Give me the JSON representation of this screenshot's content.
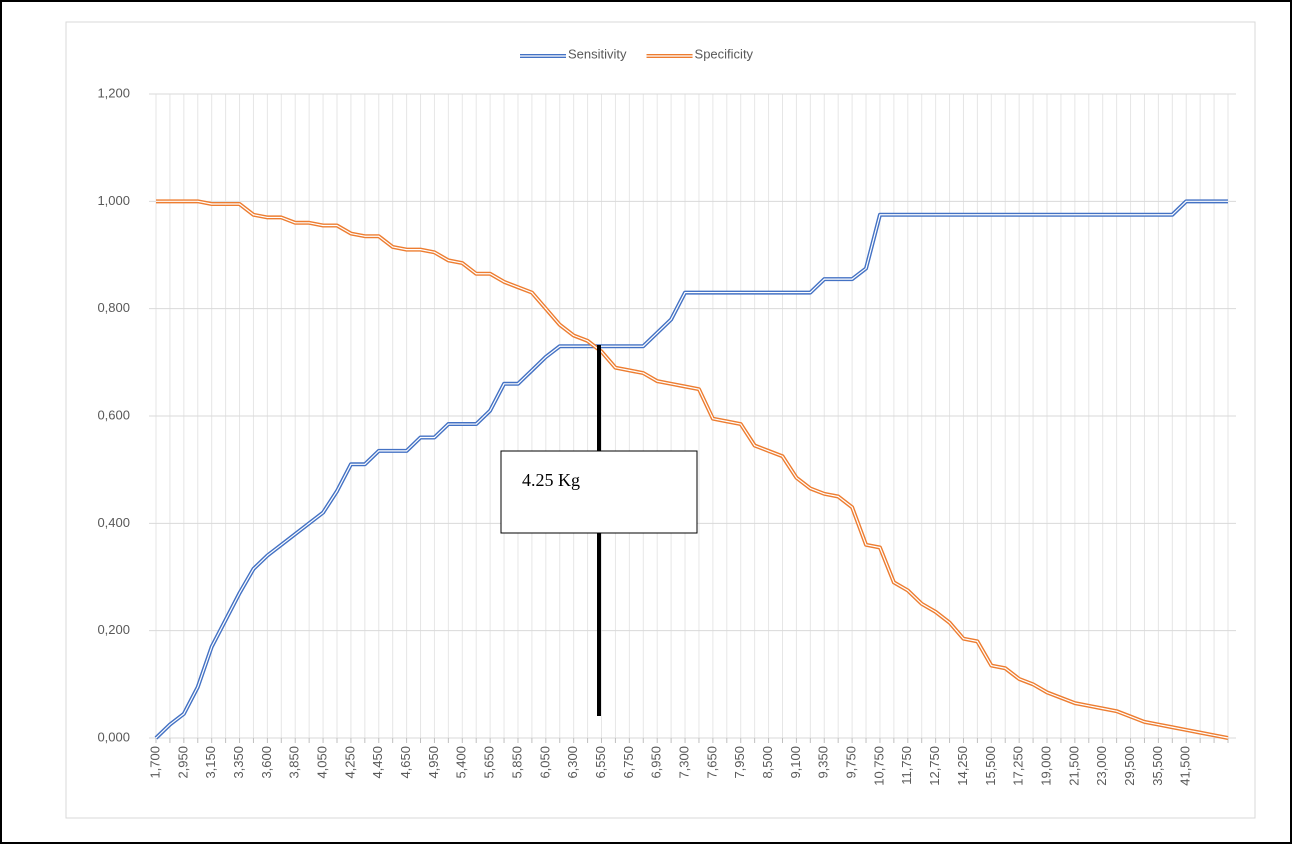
{
  "chart_data": {
    "type": "line",
    "categories": [
      "1,700",
      null,
      "2,950",
      null,
      "3,150",
      null,
      "3,350",
      null,
      "3,600",
      null,
      "3,850",
      null,
      "4,050",
      null,
      "4,250",
      null,
      "4,450",
      null,
      "4,650",
      null,
      "4,950",
      null,
      "5,400",
      null,
      "5,650",
      null,
      "5,850",
      null,
      "6,050",
      null,
      "6,300",
      null,
      "6,550",
      null,
      "6,750",
      null,
      "6,950",
      null,
      "7,300",
      null,
      "7,650",
      null,
      "7,950",
      null,
      "8,500",
      null,
      "9,100",
      null,
      "9,350",
      null,
      "9,750",
      null,
      "10,750",
      null,
      "11,750",
      null,
      "12,750",
      null,
      "14,250",
      null,
      "15,500",
      null,
      "17,250",
      null,
      "19,000",
      null,
      "21,500",
      null,
      "23,000",
      null,
      "29,500",
      null,
      "35,500",
      null,
      "41,500",
      null,
      null,
      null
    ],
    "series": [
      {
        "name": "Sensitivity",
        "color": "#4472c4",
        "values": [
          0,
          0.025,
          0.045,
          0.095,
          0.17,
          0.22,
          0.27,
          0.315,
          0.34,
          0.36,
          0.38,
          0.4,
          0.42,
          0.46,
          0.51,
          0.51,
          0.535,
          0.535,
          0.535,
          0.56,
          0.56,
          0.585,
          0.585,
          0.585,
          0.61,
          0.66,
          0.66,
          0.685,
          0.71,
          0.73,
          0.73,
          0.73,
          0.73,
          0.73,
          0.73,
          0.73,
          0.755,
          0.78,
          0.83,
          0.83,
          0.83,
          0.83,
          0.83,
          0.83,
          0.83,
          0.83,
          0.83,
          0.83,
          0.855,
          0.855,
          0.855,
          0.875,
          0.975,
          0.975,
          0.975,
          0.975,
          0.975,
          0.975,
          0.975,
          0.975,
          0.975,
          0.975,
          0.975,
          0.975,
          0.975,
          0.975,
          0.975,
          0.975,
          0.975,
          0.975,
          0.975,
          0.975,
          0.975,
          0.975,
          1.0,
          1.0,
          1.0,
          1.0
        ]
      },
      {
        "name": "Specificity",
        "color": "#ed7d31",
        "values": [
          1.0,
          1.0,
          1.0,
          1.0,
          0.995,
          0.995,
          0.995,
          0.975,
          0.97,
          0.97,
          0.96,
          0.96,
          0.955,
          0.955,
          0.94,
          0.935,
          0.935,
          0.915,
          0.91,
          0.91,
          0.905,
          0.89,
          0.885,
          0.865,
          0.865,
          0.85,
          0.84,
          0.83,
          0.8,
          0.77,
          0.75,
          0.74,
          0.72,
          0.69,
          0.685,
          0.68,
          0.665,
          0.66,
          0.655,
          0.65,
          0.595,
          0.59,
          0.585,
          0.545,
          0.535,
          0.525,
          0.485,
          0.465,
          0.455,
          0.45,
          0.43,
          0.36,
          0.355,
          0.29,
          0.275,
          0.25,
          0.235,
          0.215,
          0.185,
          0.18,
          0.135,
          0.13,
          0.11,
          0.1,
          0.085,
          0.075,
          0.065,
          0.06,
          0.055,
          0.05,
          0.04,
          0.03,
          0.025,
          0.02,
          0.015,
          0.01,
          0.005,
          0
        ]
      }
    ],
    "ylim": [
      0,
      1.2
    ],
    "yticks": [
      {
        "value": 0,
        "label": "0,000"
      },
      {
        "value": 0.2,
        "label": "0,200"
      },
      {
        "value": 0.4,
        "label": "0,400"
      },
      {
        "value": 0.6,
        "label": "0,600"
      },
      {
        "value": 0.8,
        "label": "0,800"
      },
      {
        "value": 1.0,
        "label": "1,000"
      },
      {
        "value": 1.2,
        "label": "1,200"
      }
    ],
    "grid": true,
    "legend": "top",
    "annotation": "4.25 Kg"
  }
}
